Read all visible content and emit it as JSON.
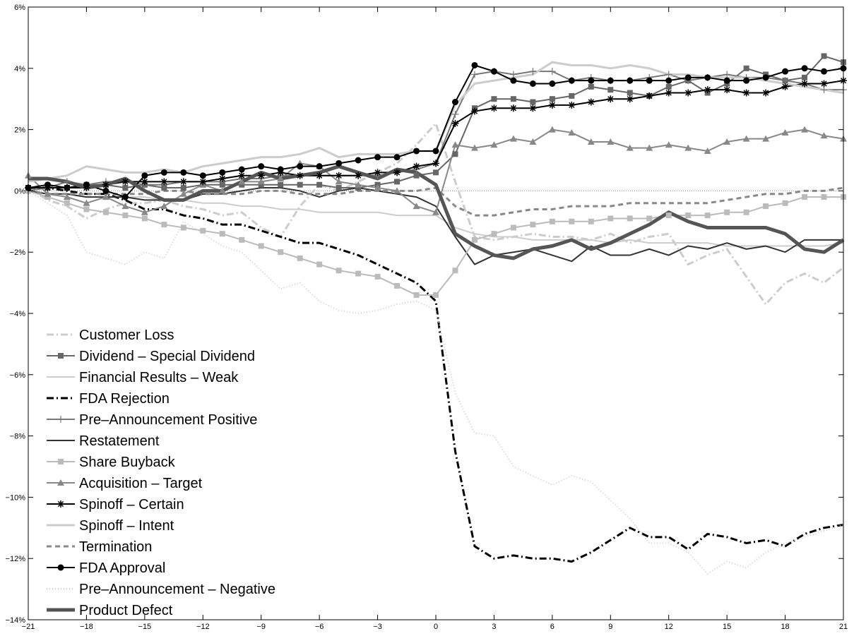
{
  "chart_data": {
    "type": "line",
    "title": "",
    "xlabel": "",
    "ylabel": "",
    "xlim": [
      -21,
      21
    ],
    "ylim": [
      -14,
      6
    ],
    "x_ticks": [
      -21,
      -18,
      -15,
      -12,
      -9,
      -6,
      -3,
      0,
      3,
      6,
      9,
      12,
      15,
      18,
      21
    ],
    "x_tick_labels": [
      "−21",
      "−18",
      "−15",
      "−12",
      "−9",
      "−6",
      "−3",
      "0",
      "3",
      "6",
      "9",
      "12",
      "15",
      "18",
      "21"
    ],
    "y_ticks": [
      -14,
      -12,
      -10,
      -8,
      -6,
      -4,
      -2,
      0,
      2,
      4,
      6
    ],
    "y_tick_labels": [
      "−14%",
      "−12%",
      "−10%",
      "−8%",
      "−6%",
      "−4%",
      "−2%",
      "0%",
      "2%",
      "4%",
      "6%"
    ],
    "zero_line": true,
    "grid": false,
    "legend_position": "lower-left",
    "x": [
      -21,
      -20,
      -19,
      -18,
      -17,
      -16,
      -15,
      -14,
      -13,
      -12,
      -11,
      -10,
      -9,
      -8,
      -7,
      -6,
      -5,
      -4,
      -3,
      -2,
      -1,
      0,
      1,
      2,
      3,
      4,
      5,
      6,
      7,
      8,
      9,
      10,
      11,
      12,
      13,
      14,
      15,
      16,
      17,
      18,
      19,
      20,
      21
    ],
    "series": [
      {
        "name": "Customer Loss",
        "color": "#cccccc",
        "width": 3,
        "dash": "10,4,2,4",
        "marker": "none",
        "values": [
          0.1,
          -0.3,
          -0.5,
          -0.9,
          -0.6,
          -0.4,
          -0.4,
          -0.3,
          -0.5,
          -0.6,
          -0.8,
          -0.7,
          -1.2,
          -1.5,
          -0.5,
          0.2,
          0.0,
          0.3,
          0.6,
          0.9,
          1.5,
          2.2,
          0.3,
          -1.5,
          -1.6,
          -1.5,
          -1.4,
          -1.5,
          -1.5,
          -1.6,
          -1.4,
          -1.7,
          -1.5,
          -1.4,
          -2.4,
          -2.1,
          -1.9,
          -2.8,
          -3.7,
          -3.0,
          -2.7,
          -3.0,
          -2.5
        ]
      },
      {
        "name": "Dividend – Special Dividend",
        "color": "#666666",
        "width": 2,
        "dash": "",
        "marker": "square",
        "values": [
          0.1,
          0.1,
          0.1,
          0.2,
          0.2,
          0.1,
          0.2,
          0.1,
          0.1,
          0.2,
          0.2,
          0.2,
          0.2,
          0.2,
          0.2,
          0.2,
          0.1,
          0.1,
          0.2,
          0.3,
          0.5,
          0.6,
          1.2,
          2.7,
          3.0,
          3.0,
          2.9,
          3.0,
          3.1,
          3.4,
          3.3,
          3.2,
          3.1,
          3.4,
          3.6,
          3.2,
          3.5,
          4.0,
          3.8,
          3.6,
          3.7,
          4.4,
          4.2
        ]
      },
      {
        "name": "Financial Results – Weak",
        "color": "#cccccc",
        "width": 2,
        "dash": "",
        "marker": "none",
        "values": [
          0.0,
          -0.1,
          -0.1,
          -0.2,
          -0.2,
          -0.2,
          -0.2,
          -0.3,
          -0.3,
          -0.4,
          -0.4,
          -0.5,
          -0.5,
          -0.6,
          -0.6,
          -0.7,
          -0.7,
          -0.7,
          -0.7,
          -0.8,
          -0.8,
          -0.8,
          -1.2,
          -1.4,
          -1.5,
          -1.5,
          -1.6,
          -1.6,
          -1.6,
          -1.6,
          -1.7,
          -1.6,
          -1.7,
          -1.7,
          -1.7,
          -1.7,
          -1.8,
          -1.8,
          -1.8,
          -1.8,
          -1.8,
          -1.8,
          -1.7
        ]
      },
      {
        "name": "FDA Rejection",
        "color": "#000000",
        "width": 3,
        "dash": "10,4,2,4",
        "marker": "none",
        "values": [
          0.1,
          0.1,
          0.0,
          -0.1,
          -0.1,
          -0.3,
          -0.6,
          -0.6,
          -0.8,
          -0.9,
          -1.1,
          -1.1,
          -1.3,
          -1.5,
          -1.7,
          -1.7,
          -1.9,
          -2.1,
          -2.4,
          -2.7,
          -3.0,
          -3.6,
          -8.5,
          -11.6,
          -12.0,
          -11.9,
          -12.0,
          -12.0,
          -12.1,
          -11.8,
          -11.4,
          -11.0,
          -11.3,
          -11.3,
          -11.7,
          -11.2,
          -11.3,
          -11.5,
          -11.4,
          -11.6,
          -11.2,
          -11.0,
          -10.9
        ]
      },
      {
        "name": "Pre–Announcement Positive",
        "color": "#777777",
        "width": 2,
        "dash": "",
        "marker": "plus",
        "values": [
          0.0,
          0.1,
          0.3,
          0.2,
          0.3,
          0.3,
          0.2,
          0.2,
          0.3,
          0.3,
          0.3,
          0.4,
          0.4,
          0.5,
          0.5,
          0.5,
          0.5,
          0.5,
          0.5,
          0.6,
          0.7,
          0.9,
          2.5,
          3.8,
          3.9,
          3.8,
          3.9,
          3.9,
          3.6,
          3.7,
          3.6,
          3.6,
          3.7,
          3.8,
          3.6,
          3.7,
          3.8,
          3.7,
          3.7,
          3.6,
          3.5,
          3.3,
          3.3
        ]
      },
      {
        "name": "Restatement",
        "color": "#333333",
        "width": 2,
        "dash": "",
        "marker": "none",
        "values": [
          0.0,
          -0.1,
          -0.1,
          -0.2,
          -0.2,
          -0.2,
          -0.3,
          -0.3,
          -0.3,
          -0.1,
          -0.1,
          0.0,
          0.1,
          0.1,
          0.0,
          -0.2,
          0.0,
          0.1,
          0.0,
          -0.1,
          -0.2,
          -0.5,
          -1.5,
          -2.4,
          -2.1,
          -2.0,
          -1.9,
          -2.1,
          -2.3,
          -1.8,
          -2.1,
          -2.1,
          -1.9,
          -2.1,
          -1.8,
          -1.9,
          -1.7,
          -1.9,
          -1.8,
          -2.0,
          -1.6,
          -1.6,
          -1.6
        ]
      },
      {
        "name": "Share Buyback",
        "color": "#bbbbbb",
        "width": 2,
        "dash": "",
        "marker": "square",
        "values": [
          0.0,
          -0.2,
          -0.4,
          -0.6,
          -0.7,
          -0.8,
          -0.9,
          -1.1,
          -1.2,
          -1.3,
          -1.4,
          -1.6,
          -1.8,
          -2.0,
          -2.2,
          -2.4,
          -2.6,
          -2.7,
          -2.8,
          -3.1,
          -3.4,
          -3.4,
          -2.6,
          -1.6,
          -1.4,
          -1.2,
          -1.1,
          -1.0,
          -1.0,
          -1.0,
          -0.9,
          -0.9,
          -0.9,
          -0.8,
          -0.8,
          -0.8,
          -0.7,
          -0.7,
          -0.5,
          -0.4,
          -0.2,
          -0.2,
          -0.2
        ]
      },
      {
        "name": "Acquisition – Target",
        "color": "#888888",
        "width": 2,
        "dash": "",
        "marker": "triangle",
        "values": [
          0.5,
          -0.1,
          -0.2,
          -0.4,
          -0.2,
          -0.5,
          -0.7,
          -0.5,
          -0.1,
          0.2,
          0.0,
          0.3,
          0.3,
          0.4,
          0.9,
          0.8,
          0.3,
          0.2,
          0.1,
          0.0,
          -0.5,
          -0.7,
          1.5,
          1.4,
          1.5,
          1.7,
          1.6,
          2.0,
          1.9,
          1.6,
          1.6,
          1.4,
          1.4,
          1.5,
          1.4,
          1.3,
          1.6,
          1.7,
          1.7,
          1.9,
          2.0,
          1.8,
          1.7
        ]
      },
      {
        "name": "Spinoff – Certain",
        "color": "#000000",
        "width": 2,
        "dash": "",
        "marker": "star",
        "values": [
          0.1,
          0.1,
          0.1,
          0.1,
          0.2,
          0.3,
          0.3,
          0.3,
          0.3,
          0.3,
          0.4,
          0.5,
          0.5,
          0.6,
          0.5,
          0.5,
          0.5,
          0.5,
          0.6,
          0.6,
          0.8,
          0.9,
          2.2,
          2.6,
          2.7,
          2.7,
          2.7,
          2.8,
          2.8,
          2.9,
          3.0,
          3.0,
          3.1,
          3.2,
          3.2,
          3.3,
          3.3,
          3.2,
          3.2,
          3.4,
          3.5,
          3.5,
          3.6
        ]
      },
      {
        "name": "Spinoff – Intent",
        "color": "#cccccc",
        "width": 3,
        "dash": "",
        "marker": "none",
        "values": [
          0.3,
          0.4,
          0.5,
          0.8,
          0.7,
          0.6,
          0.6,
          0.7,
          0.6,
          0.8,
          0.9,
          1.0,
          1.1,
          1.1,
          1.2,
          1.4,
          1.1,
          1.2,
          1.2,
          1.2,
          1.3,
          1.3,
          2.8,
          3.5,
          3.6,
          3.7,
          3.8,
          4.2,
          4.1,
          4.1,
          4.0,
          4.1,
          4.0,
          3.8,
          3.8,
          3.7,
          3.7,
          3.7,
          3.6,
          3.5,
          3.4,
          3.3,
          3.2
        ]
      },
      {
        "name": "Termination",
        "color": "#888888",
        "width": 3,
        "dash": "7,5",
        "marker": "none",
        "values": [
          0.0,
          -0.1,
          -0.1,
          -0.1,
          -0.1,
          -0.1,
          -0.1,
          0.0,
          0.0,
          -0.1,
          -0.1,
          -0.1,
          0.0,
          0.0,
          -0.1,
          -0.1,
          -0.1,
          0.0,
          0.0,
          0.0,
          0.0,
          0.1,
          -0.5,
          -0.8,
          -0.8,
          -0.7,
          -0.6,
          -0.6,
          -0.5,
          -0.5,
          -0.5,
          -0.4,
          -0.4,
          -0.4,
          -0.4,
          -0.4,
          -0.3,
          -0.2,
          -0.1,
          -0.1,
          0.0,
          0.0,
          0.1
        ]
      },
      {
        "name": "FDA Approval",
        "color": "#000000",
        "width": 2,
        "dash": "",
        "marker": "circle",
        "values": [
          0.1,
          0.2,
          0.1,
          0.2,
          0.0,
          -0.2,
          0.5,
          0.6,
          0.6,
          0.5,
          0.6,
          0.7,
          0.8,
          0.7,
          0.8,
          0.8,
          0.9,
          1.0,
          1.1,
          1.1,
          1.3,
          1.3,
          2.9,
          4.1,
          3.9,
          3.6,
          3.5,
          3.5,
          3.6,
          3.6,
          3.6,
          3.6,
          3.6,
          3.6,
          3.7,
          3.7,
          3.6,
          3.6,
          3.7,
          3.9,
          4.0,
          3.9,
          4.0
        ]
      },
      {
        "name": "Pre–Announcement – Negative",
        "color": "#cccccc",
        "width": 2,
        "dash": "1,3",
        "marker": "none",
        "values": [
          0.0,
          -0.4,
          -0.8,
          -2.0,
          -2.2,
          -2.4,
          -2.0,
          -2.2,
          -1.0,
          -1.4,
          -1.8,
          -2.0,
          -2.6,
          -3.2,
          -3.0,
          -3.6,
          -3.9,
          -4.0,
          -3.9,
          -3.7,
          -3.6,
          -3.9,
          -6.6,
          -7.9,
          -8.0,
          -9.0,
          -9.3,
          -9.6,
          -9.3,
          -9.5,
          -10.1,
          -10.7,
          -11.5,
          -11.5,
          -11.8,
          -12.5,
          -12.1,
          -12.3,
          -11.8,
          -11.5,
          -11.3,
          -11.1,
          -10.9
        ]
      },
      {
        "name": "Product Defect",
        "color": "#555555",
        "width": 5,
        "dash": "",
        "marker": "none",
        "values": [
          0.4,
          0.4,
          0.3,
          0.1,
          0.2,
          0.4,
          0.0,
          -0.3,
          -0.3,
          0.0,
          0.0,
          0.3,
          0.6,
          0.4,
          0.5,
          0.6,
          0.8,
          0.6,
          0.4,
          0.7,
          0.6,
          0.2,
          -1.4,
          -1.8,
          -2.1,
          -2.2,
          -1.9,
          -1.8,
          -1.6,
          -1.9,
          -1.7,
          -1.4,
          -1.1,
          -0.7,
          -1.0,
          -1.2,
          -1.2,
          -1.2,
          -1.2,
          -1.4,
          -1.9,
          -2.0,
          -1.6
        ]
      }
    ]
  }
}
